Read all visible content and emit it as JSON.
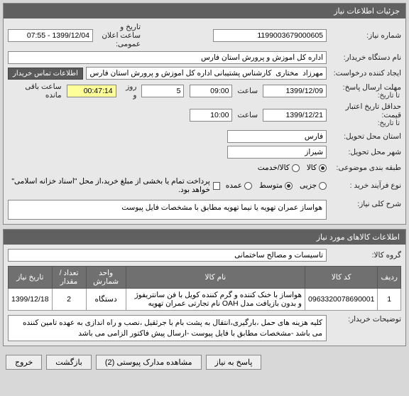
{
  "panels": {
    "need_info_title": "جزئیات اطلاعات نیاز",
    "goods_info_title": "اطلاعات کالاهای مورد نیاز"
  },
  "labels": {
    "need_no": "شماره نیاز:",
    "announce_dt": "تاریخ و ساعت اعلان عمومی:",
    "buyer_org": "نام دستگاه خریدار:",
    "creator": "ایجاد کننده درخواست:",
    "buyer_contact_btn": "اطلاعات تماس خریدار",
    "reply_deadline": "مهلت ارسال پاسخ:",
    "to_date": "تا تاریخ:",
    "min_valid": "حداقل تاریخ اعتبار قیمت:",
    "to_date2": "تا تاریخ:",
    "delivery_province": "استان محل تحویل:",
    "delivery_city": "شهر محل تحویل:",
    "budget_row": "طبقه بندی موضوعی:",
    "process_type": "نوع فرآیند خرید :",
    "goods": "کالا",
    "service": "کالا/خدمت",
    "pay_note": "پرداخت تمام یا بخشی از مبلغ خرید،از محل \"اسناد خزانه اسلامی\" خواهد بود.",
    "need_desc": "شرح کلی نیاز:",
    "goods_group": "گروه کالا:",
    "buyer_notes": "توضیحات خریدار:",
    "hour_lbl": "ساعت",
    "day_lbl": "روز و",
    "remain_lbl": "ساعت باقی مانده",
    "hour_lbl2": "ساعت"
  },
  "values": {
    "need_no": "1199003679000605",
    "announce_dt": "1399/12/04 - 07:55",
    "buyer_org": "اداره کل آموزش و پرورش استان فارس",
    "creator": "مهرزاد  مختاری  کارشناس پشتیبانی اداره کل آموزش و پرورش استان فارس",
    "reply_date": "1399/12/09",
    "reply_time": "09:00",
    "days_left": "5",
    "time_left": "00:47:14",
    "valid_date": "1399/12/21",
    "valid_time": "10:00",
    "province": "فارس",
    "city": "شیراز",
    "need_desc": "هواساز عمران تهویه یا نیما تهویه مطابق با مشخصات فایل پیوست",
    "goods_group": "تاسیسات و مصالح ساختمانی",
    "buyer_notes": "کلیه هزینه های حمل ،بارگیری،انتقال به پشت بام با جرثقیل ،نصب و راه اندازی به عهده تامین کننده می باشد -مشخصات مطابق با فایل پیوست -ارسال پیش فاکتور الزامی می باشد"
  },
  "process_type": {
    "options": [
      "جزیی",
      "متوسط",
      "عمده"
    ],
    "selected": 1
  },
  "table": {
    "headers": [
      "ردیف",
      "کد کالا",
      "نام کالا",
      "واحد شمارش",
      "تعداد / مقدار",
      "تاریخ نیاز"
    ],
    "rows": [
      [
        "1",
        "0963320078690001",
        "هواساز با خنک کننده و گرم کننده کویل با فن سانتریفوژ و بدون بازیافت مدل OAH نام تجارتی عمران تهویه",
        "دستگاه",
        "2",
        "1399/12/18"
      ]
    ]
  },
  "buttons": {
    "exit": "خروج",
    "back": "بازگشت",
    "attachments": "مشاهده مدارک پیوستی (2)",
    "reply": "پاسخ به نیاز"
  },
  "colors": {
    "header_bg": "#606060",
    "header_fg": "#ffffff",
    "border": "#888888",
    "input_bg": "#ffffff",
    "body_bg": "#d8d8d8"
  }
}
